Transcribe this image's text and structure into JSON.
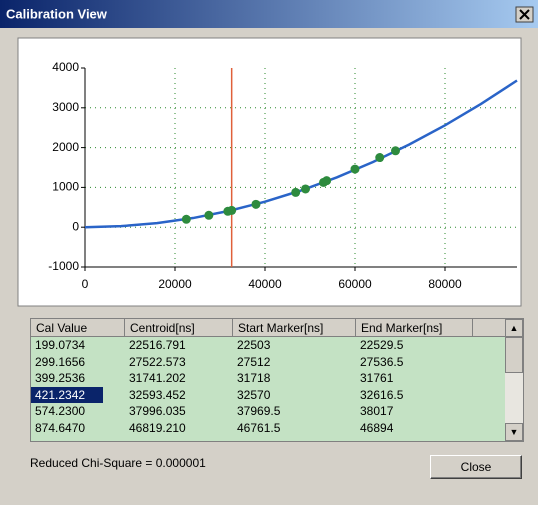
{
  "window": {
    "title": "Calibration View"
  },
  "chart_data": {
    "type": "scatter",
    "xlim": [
      0,
      96000
    ],
    "xticks": [
      0,
      20000,
      40000,
      60000,
      80000
    ],
    "ylim": [
      -1000,
      4000
    ],
    "yticks": [
      -1000,
      0,
      1000,
      2000,
      3000,
      4000
    ],
    "grid": true,
    "curve": {
      "color": "#2a64c8",
      "x": [
        0,
        8000,
        16000,
        24000,
        32000,
        40000,
        48000,
        56000,
        64000,
        72000,
        80000,
        88000,
        96000
      ],
      "values": [
        0,
        26,
        102,
        230,
        410,
        640,
        922,
        1254,
        1638,
        2074,
        2560,
        3098,
        3686
      ]
    },
    "points": {
      "color": "#2e8b3e",
      "x": [
        22516.791,
        27522.573,
        31741.202,
        32593.452,
        37996.035,
        46819.21,
        49000,
        53000,
        53700,
        60000,
        65500,
        69000
      ],
      "values": [
        199.0734,
        299.1656,
        399.2536,
        421.2342,
        574.23,
        874.647,
        960,
        1125,
        1170,
        1460,
        1750,
        1920
      ]
    },
    "marker": {
      "x": 32593.452,
      "color": "#e0603a"
    }
  },
  "table": {
    "columns": [
      "Cal Value",
      "Centroid[ns]",
      "Start Marker[ns]",
      "End Marker[ns]"
    ],
    "rows": [
      [
        "199.0734",
        "22516.791",
        "22503",
        "22529.5"
      ],
      [
        "299.1656",
        "27522.573",
        "27512",
        "27536.5"
      ],
      [
        "399.2536",
        "31741.202",
        "31718",
        "31761"
      ],
      [
        "421.2342",
        "32593.452",
        "32570",
        "32616.5"
      ],
      [
        "574.2300",
        "37996.035",
        "37969.5",
        "38017"
      ],
      [
        "874.6470",
        "46819.210",
        "46761.5",
        "46894"
      ]
    ],
    "selected_row": 3
  },
  "status": "Reduced Chi-Square = 0.000001",
  "button": "Close"
}
